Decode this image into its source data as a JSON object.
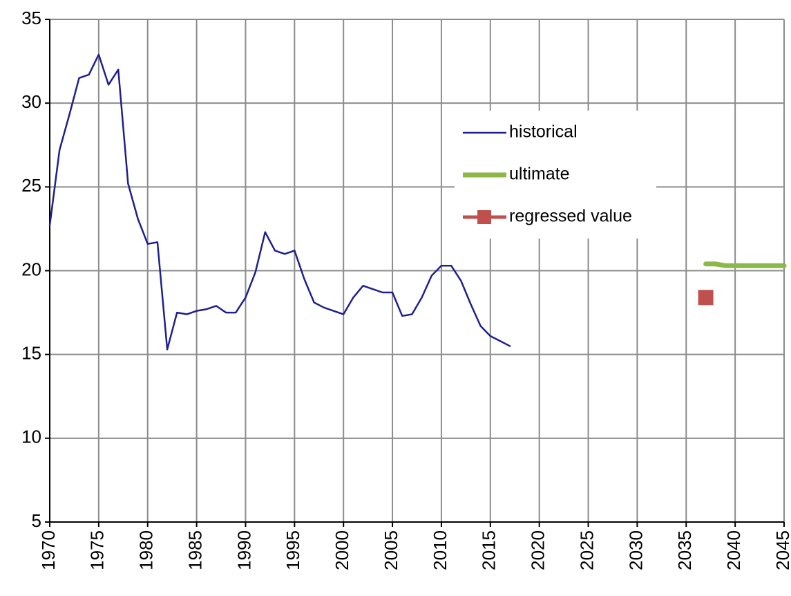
{
  "chart_data": {
    "type": "line",
    "xlim": [
      1970,
      2045
    ],
    "xticks": [
      1970,
      1975,
      1980,
      1985,
      1990,
      1995,
      2000,
      2005,
      2010,
      2015,
      2020,
      2025,
      2030,
      2035,
      2040,
      2045
    ],
    "ylim": [
      5,
      35
    ],
    "yticks": [
      5,
      10,
      15,
      20,
      25,
      30,
      35
    ],
    "grid": true,
    "series": [
      {
        "name": "historical",
        "color": "#1f1f8f",
        "line_width": 2.5,
        "x": [
          1970,
          1971,
          1972,
          1973,
          1974,
          1975,
          1976,
          1977,
          1978,
          1979,
          1980,
          1981,
          1982,
          1983,
          1984,
          1985,
          1986,
          1987,
          1988,
          1989,
          1990,
          1991,
          1992,
          1993,
          1994,
          1995,
          1996,
          1997,
          1998,
          1999,
          2000,
          2001,
          2002,
          2003,
          2004,
          2005,
          2006,
          2007,
          2008,
          2009,
          2010,
          2011,
          2012,
          2013,
          2014,
          2015,
          2016,
          2017
        ],
        "values": [
          22.7,
          27.2,
          29.3,
          31.5,
          31.7,
          32.9,
          31.1,
          32.0,
          25.2,
          23.1,
          21.6,
          21.7,
          15.3,
          17.5,
          17.4,
          17.6,
          17.7,
          17.9,
          17.5,
          17.5,
          18.4,
          19.9,
          22.3,
          21.2,
          21.0,
          21.2,
          19.5,
          18.1,
          17.8,
          17.6,
          17.4,
          18.4,
          19.1,
          18.9,
          18.7,
          18.7,
          17.3,
          17.4,
          18.4,
          19.7,
          20.3,
          20.3,
          19.4,
          18.0,
          16.7,
          16.1,
          15.8,
          15.5
        ]
      },
      {
        "name": "ultimate",
        "color": "#8cb84a",
        "line_width": 7,
        "x": [
          2037,
          2038,
          2039,
          2040,
          2041,
          2042,
          2043,
          2044,
          2045
        ],
        "values": [
          20.4,
          20.4,
          20.3,
          20.3,
          20.3,
          20.3,
          20.3,
          20.3,
          20.3
        ]
      },
      {
        "name": "regressed value",
        "color": "#c0504d",
        "marker": "square",
        "x": [
          2037
        ],
        "values": [
          18.4
        ]
      }
    ]
  }
}
